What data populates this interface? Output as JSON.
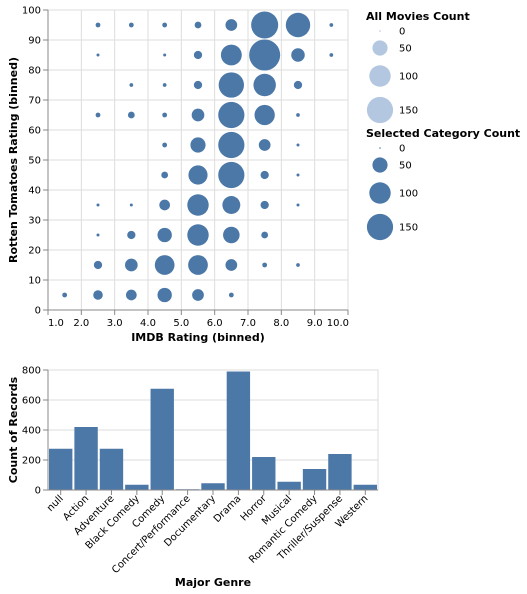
{
  "colors": {
    "mark": "#4c78a8",
    "legend_all": "#b4c7e0",
    "grid": "#dddddd",
    "axis": "#888888"
  },
  "chart_data": [
    {
      "type": "scatter",
      "xlabel": "IMDB Rating (binned)",
      "ylabel": "Rotten Tomatoes Rating (binned)",
      "x_ticks": [
        "1.0",
        "2.0",
        "3.0",
        "4.0",
        "5.0",
        "6.0",
        "7.0",
        "8.0",
        "9.0",
        "10.0"
      ],
      "y_ticks": [
        "0",
        "10",
        "20",
        "30",
        "40",
        "50",
        "60",
        "70",
        "80",
        "90",
        "100"
      ],
      "xlim": [
        1,
        10
      ],
      "ylim": [
        0,
        100
      ],
      "grid": true,
      "legend_placement": "right",
      "size_legends": [
        {
          "title": "All Movies Count",
          "values": [
            0,
            50,
            100,
            150
          ]
        },
        {
          "title": "Selected Category Count",
          "values": [
            0,
            50,
            100,
            150
          ]
        }
      ],
      "points": [
        {
          "x": 1.5,
          "y": 5,
          "count": 5
        },
        {
          "x": 2.5,
          "y": 5,
          "count": 20
        },
        {
          "x": 3.5,
          "y": 5,
          "count": 25
        },
        {
          "x": 4.5,
          "y": 5,
          "count": 45
        },
        {
          "x": 5.5,
          "y": 5,
          "count": 30
        },
        {
          "x": 6.5,
          "y": 5,
          "count": 5
        },
        {
          "x": 2.5,
          "y": 15,
          "count": 15
        },
        {
          "x": 3.5,
          "y": 15,
          "count": 35
        },
        {
          "x": 4.5,
          "y": 15,
          "count": 85
        },
        {
          "x": 5.5,
          "y": 15,
          "count": 85
        },
        {
          "x": 6.5,
          "y": 15,
          "count": 30
        },
        {
          "x": 7.5,
          "y": 15,
          "count": 5
        },
        {
          "x": 8.5,
          "y": 15,
          "count": 3
        },
        {
          "x": 2.5,
          "y": 25,
          "count": 2
        },
        {
          "x": 3.5,
          "y": 25,
          "count": 15
        },
        {
          "x": 4.5,
          "y": 25,
          "count": 45
        },
        {
          "x": 5.5,
          "y": 25,
          "count": 100
        },
        {
          "x": 6.5,
          "y": 25,
          "count": 60
        },
        {
          "x": 7.5,
          "y": 25,
          "count": 10
        },
        {
          "x": 2.5,
          "y": 35,
          "count": 2
        },
        {
          "x": 3.5,
          "y": 35,
          "count": 2
        },
        {
          "x": 4.5,
          "y": 35,
          "count": 25
        },
        {
          "x": 5.5,
          "y": 35,
          "count": 100
        },
        {
          "x": 6.5,
          "y": 35,
          "count": 70
        },
        {
          "x": 7.5,
          "y": 35,
          "count": 15
        },
        {
          "x": 8.5,
          "y": 35,
          "count": 2
        },
        {
          "x": 4.5,
          "y": 45,
          "count": 10
        },
        {
          "x": 5.5,
          "y": 45,
          "count": 80
        },
        {
          "x": 6.5,
          "y": 45,
          "count": 150
        },
        {
          "x": 7.5,
          "y": 45,
          "count": 15
        },
        {
          "x": 8.5,
          "y": 45,
          "count": 2
        },
        {
          "x": 4.5,
          "y": 55,
          "count": 5
        },
        {
          "x": 5.5,
          "y": 55,
          "count": 50
        },
        {
          "x": 6.5,
          "y": 55,
          "count": 150
        },
        {
          "x": 7.5,
          "y": 55,
          "count": 30
        },
        {
          "x": 8.5,
          "y": 55,
          "count": 2
        },
        {
          "x": 2.5,
          "y": 65,
          "count": 5
        },
        {
          "x": 3.5,
          "y": 65,
          "count": 10
        },
        {
          "x": 4.5,
          "y": 65,
          "count": 5
        },
        {
          "x": 5.5,
          "y": 65,
          "count": 35
        },
        {
          "x": 6.5,
          "y": 65,
          "count": 150
        },
        {
          "x": 7.5,
          "y": 65,
          "count": 90
        },
        {
          "x": 8.5,
          "y": 65,
          "count": 3
        },
        {
          "x": 3.5,
          "y": 75,
          "count": 3
        },
        {
          "x": 4.5,
          "y": 75,
          "count": 3
        },
        {
          "x": 5.5,
          "y": 75,
          "count": 15
        },
        {
          "x": 6.5,
          "y": 75,
          "count": 140
        },
        {
          "x": 7.5,
          "y": 75,
          "count": 110
        },
        {
          "x": 8.5,
          "y": 75,
          "count": 15
        },
        {
          "x": 2.5,
          "y": 85,
          "count": 2
        },
        {
          "x": 4.5,
          "y": 85,
          "count": 2
        },
        {
          "x": 5.5,
          "y": 85,
          "count": 15
        },
        {
          "x": 6.5,
          "y": 85,
          "count": 95
        },
        {
          "x": 7.5,
          "y": 85,
          "count": 210
        },
        {
          "x": 8.5,
          "y": 85,
          "count": 40
        },
        {
          "x": 9.5,
          "y": 85,
          "count": 3
        },
        {
          "x": 2.5,
          "y": 95,
          "count": 5
        },
        {
          "x": 3.5,
          "y": 95,
          "count": 5
        },
        {
          "x": 4.5,
          "y": 95,
          "count": 5
        },
        {
          "x": 5.5,
          "y": 95,
          "count": 10
        },
        {
          "x": 6.5,
          "y": 95,
          "count": 30
        },
        {
          "x": 7.5,
          "y": 95,
          "count": 160
        },
        {
          "x": 8.5,
          "y": 95,
          "count": 130
        },
        {
          "x": 9.5,
          "y": 95,
          "count": 3
        }
      ]
    },
    {
      "type": "bar",
      "xlabel": "Major Genre",
      "ylabel": "Count of Records",
      "categories": [
        "null",
        "Action",
        "Adventure",
        "Black Comedy",
        "Comedy",
        "Concert/Performance",
        "Documentary",
        "Drama",
        "Horror",
        "Musical",
        "Romantic Comedy",
        "Thriller/Suspense",
        "Western"
      ],
      "values": [
        275,
        420,
        275,
        35,
        675,
        5,
        45,
        790,
        220,
        55,
        140,
        240,
        35
      ],
      "y_ticks": [
        "0",
        "200",
        "400",
        "600",
        "800"
      ],
      "ylim": [
        0,
        800
      ],
      "grid": true
    }
  ]
}
